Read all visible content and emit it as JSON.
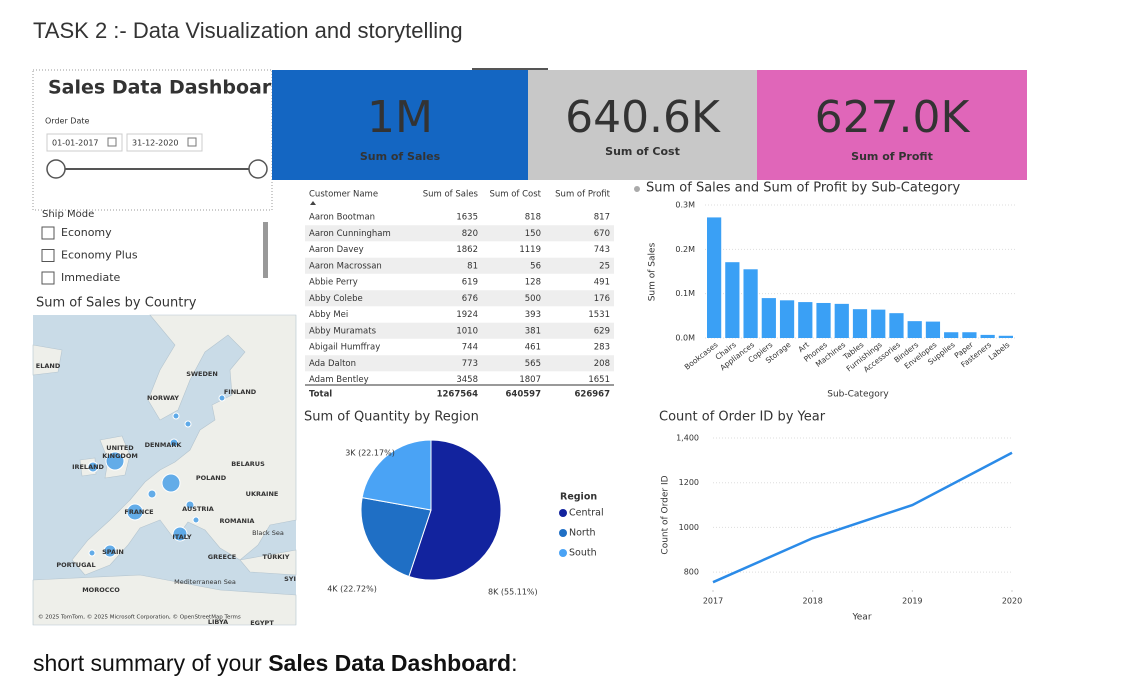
{
  "header": {
    "title": "TASK 2 :- Data Visualization and storytelling"
  },
  "dashboard": {
    "title": "Sales Data Dashboard",
    "date_filter": {
      "label": "Order Date",
      "start": "01-01-2017",
      "end": "31-12-2020"
    },
    "ship_mode": {
      "label": "Ship Mode",
      "options": [
        "Economy",
        "Economy Plus",
        "Immediate"
      ]
    },
    "map": {
      "title": "Sum of Sales by Country",
      "places": [
        "ELAND",
        "SWEDEN",
        "NORWAY",
        "FINLAND",
        "UNITED",
        "KINGDOM",
        "DENMARK",
        "IRELAND",
        "BELARUS",
        "POLAND",
        "UKRAINE",
        "FRANCE",
        "AUSTRIA",
        "ROMANIA",
        "ITALY",
        "Black Sea",
        "SPAIN",
        "GREECE",
        "TÜRKIY",
        "PORTUGAL",
        "Mediterranean Sea",
        "SYI",
        "MOROCCO",
        "LIBYA",
        "EGYPT"
      ],
      "attribution": "© 2025 TomTom, © 2025 Microsoft Corporation, © OpenStreetMap  Terms"
    },
    "kpis": [
      {
        "value": "1M",
        "label": "Sum of Sales",
        "color": "#1466c2"
      },
      {
        "value": "640.6K",
        "label": "Sum of Cost",
        "color": "#c8c8c8"
      },
      {
        "value": "627.0K",
        "label": "Sum of Profit",
        "color": "#e066b9"
      }
    ],
    "table": {
      "columns": [
        "Customer Name",
        "Sum of Sales",
        "Sum of Cost",
        "Sum of Profit"
      ],
      "rows": [
        [
          "Aaron Bootman",
          1635,
          818,
          817
        ],
        [
          "Aaron Cunningham",
          820,
          150,
          670
        ],
        [
          "Aaron Davey",
          1862,
          1119,
          743
        ],
        [
          "Aaron Macrossan",
          81,
          56,
          25
        ],
        [
          "Abbie Perry",
          619,
          128,
          491
        ],
        [
          "Abby Colebe",
          676,
          500,
          176
        ],
        [
          "Abby Mei",
          1924,
          393,
          1531
        ],
        [
          "Abby Muramats",
          1010,
          381,
          629
        ],
        [
          "Abigail Humffray",
          744,
          461,
          283
        ],
        [
          "Ada Dalton",
          773,
          565,
          208
        ],
        [
          "Adam Bentley",
          3458,
          1807,
          1651
        ]
      ],
      "total": [
        "Total",
        1267564,
        640597,
        626967
      ]
    }
  },
  "chart_data": [
    {
      "type": "bar",
      "title": "Sum of Sales and Sum of Profit by Sub-Category",
      "x_label": "Sub-Category",
      "y_label": "Sum of Sales",
      "color": "#3aa0f5",
      "categories": [
        "Bookcases",
        "Chairs",
        "Appliances",
        "Copiers",
        "Storage",
        "Art",
        "Phones",
        "Machines",
        "Tables",
        "Furnishings",
        "Accessories",
        "Binders",
        "Envelopes",
        "Supplies",
        "Paper",
        "Fasteners",
        "Labels"
      ],
      "values": [
        272000,
        171000,
        155000,
        90000,
        85000,
        81000,
        79000,
        77000,
        65000,
        64000,
        56000,
        38000,
        37000,
        13000,
        13000,
        7000,
        5000
      ],
      "ylim": [
        0,
        300000
      ],
      "yticks": [
        {
          "value": 0,
          "label": "0.0M"
        },
        {
          "value": 100000,
          "label": "0.1M"
        },
        {
          "value": 200000,
          "label": "0.2M"
        },
        {
          "value": 300000,
          "label": "0.3M"
        }
      ],
      "grid": true
    },
    {
      "type": "pie",
      "title": "Sum of Quantity by Region",
      "legend_title": "Region",
      "categories": [
        "Central",
        "North",
        "South"
      ],
      "values": [
        55.11,
        22.72,
        22.17
      ],
      "value_labels": [
        "8K (55.11%)",
        "4K (22.72%)",
        "3K (22.17%)"
      ],
      "colors": [
        "#12239e",
        "#1f6fc5",
        "#4aa3f5"
      ]
    },
    {
      "type": "line",
      "title": "Count of Order ID by Year",
      "x_label": "Year",
      "y_label": "Count of Order ID",
      "color": "#2b8be8",
      "x": [
        2017,
        2018,
        2019,
        2020
      ],
      "y": [
        755,
        952,
        1100,
        1334
      ],
      "xlim": [
        2017,
        2020
      ],
      "xticks": [
        2017,
        2018,
        2019,
        2020
      ],
      "ylim": [
        720,
        1400
      ],
      "yticks": [
        800,
        1000,
        1200,
        {
          "value": 1400,
          "label": "1,400"
        }
      ],
      "grid": true
    }
  ],
  "footer": {
    "text": "short summary of your ",
    "bold": "Sales Data Dashboard",
    "end": ":"
  }
}
